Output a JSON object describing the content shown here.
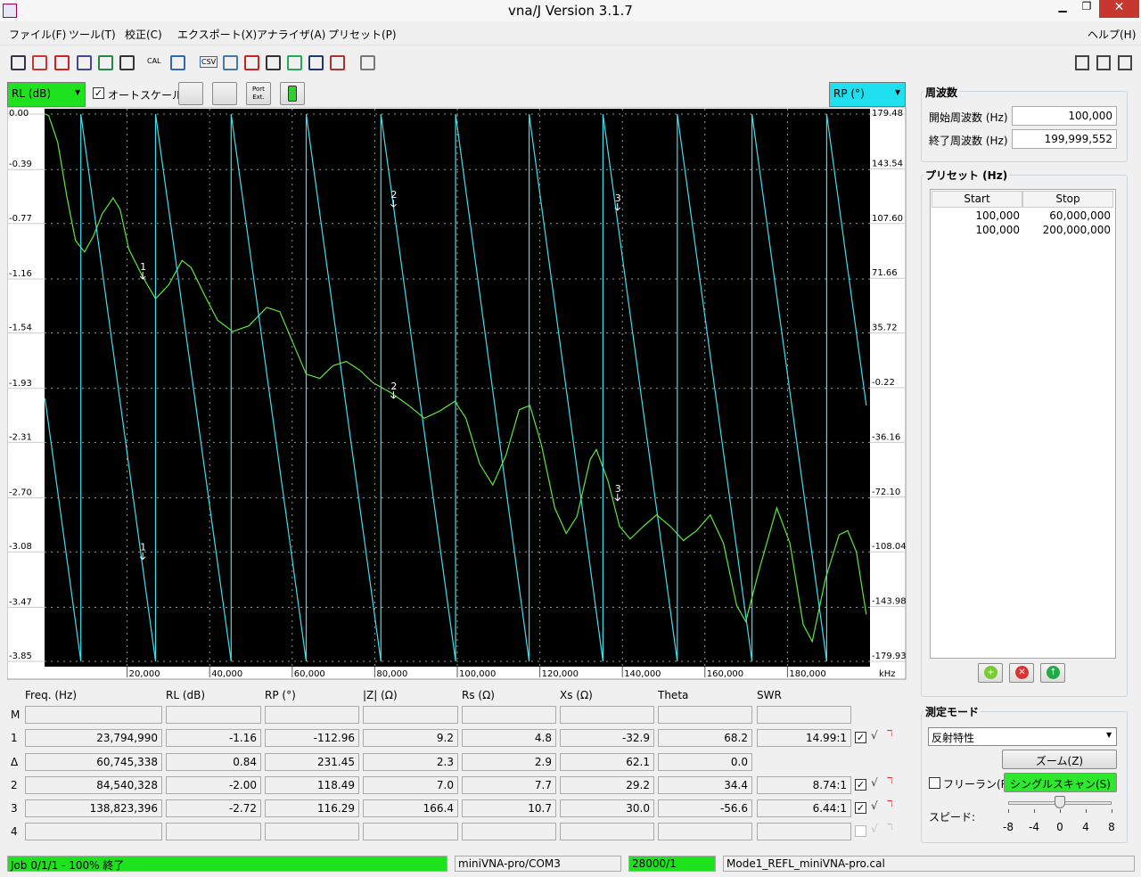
{
  "window": {
    "title": "vna/J Version 3.1.7"
  },
  "menu": {
    "items": [
      "ファイル(F)",
      "ツール(T)",
      "校正(C)",
      "エクスポート(X)",
      "アナライザ(A)",
      "プリセット(P)"
    ],
    "help": "ヘルプ(H)"
  },
  "toolbar": {
    "cal": "CAL",
    "csv": "CSV"
  },
  "chart_controls": {
    "left_trace": "RL (dB)",
    "autoscale": "オートスケール",
    "autoscale_checked": true,
    "port_button": "Port Ext.",
    "right_trace": "RP (°)"
  },
  "chart": {
    "type": "line",
    "x_unit": "kHz",
    "xlim": [
      0,
      200000
    ],
    "xticks": [
      {
        "value": 20000,
        "label": "20,000"
      },
      {
        "value": 40000,
        "label": "40,000"
      },
      {
        "value": 60000,
        "label": "60,000"
      },
      {
        "value": 80000,
        "label": "80,000"
      },
      {
        "value": 100000,
        "label": "100,000"
      },
      {
        "value": 120000,
        "label": "120,000"
      },
      {
        "value": 140000,
        "label": "140,000"
      },
      {
        "value": 160000,
        "label": "160,000"
      },
      {
        "value": 180000,
        "label": "180,000"
      }
    ],
    "ylim": [
      -3.85,
      0
    ],
    "yticks": [
      {
        "value": 0,
        "label": "0.00"
      },
      -0.39,
      -0.77,
      -1.16,
      -1.54,
      -1.93,
      -2.31,
      {
        "value": -2.7,
        "label": "-2.70"
      },
      -3.08,
      -3.47,
      -3.85
    ],
    "y2lim": [
      -179.93,
      179.48
    ],
    "y2ticks": [
      179.48,
      143.54,
      {
        "value": 107.6,
        "label": "107.60"
      },
      71.66,
      35.72,
      -0.22,
      -36.16,
      {
        "value": -72.1,
        "label": "-72.10"
      },
      -108.04,
      -143.98,
      -179.93
    ],
    "grid": true,
    "series": [
      {
        "color": "#5ee83c",
        "x": [
          100,
          1000,
          3200,
          5400,
          7500,
          9700,
          11800,
          14000,
          16600,
          18300,
          20400,
          23700,
          26900,
          30100,
          33300,
          35500,
          38700,
          41900,
          45600,
          49500,
          53800,
          57000,
          60200,
          63400,
          66700,
          69900,
          73100,
          76300,
          79600,
          83900,
          88200,
          92000,
          95700,
          99400,
          102100,
          105400,
          108600,
          111800,
          115000,
          117600,
          120400,
          123600,
          126400,
          129000,
          132200,
          133700,
          136500,
          139300,
          141900,
          145100,
          148300,
          151600,
          154800,
          158000,
          161300,
          164500,
          167700,
          169900,
          173100,
          177400,
          180600,
          183800,
          186000,
          189200,
          192500,
          194600,
          196700,
          199100
        ],
        "values": [
          0,
          -0.01,
          -0.2,
          -0.58,
          -0.89,
          -0.97,
          -0.86,
          -0.7,
          -0.59,
          -0.67,
          -0.95,
          -1.14,
          -1.3,
          -1.2,
          -1.03,
          -1.08,
          -1.27,
          -1.45,
          -1.53,
          -1.49,
          -1.36,
          -1.39,
          -1.61,
          -1.83,
          -1.86,
          -1.77,
          -1.74,
          -1.8,
          -1.89,
          -1.96,
          -2.05,
          -2.14,
          -2.09,
          -2.02,
          -2.14,
          -2.46,
          -2.61,
          -2.4,
          -2.08,
          -2.05,
          -2.33,
          -2.77,
          -2.95,
          -2.83,
          -2.43,
          -2.36,
          -2.58,
          -2.9,
          -2.99,
          -2.9,
          -2.82,
          -2.9,
          -3.0,
          -2.93,
          -2.82,
          -3.02,
          -3.46,
          -3.57,
          -3.21,
          -2.77,
          -3.02,
          -3.59,
          -3.71,
          -3.27,
          -2.96,
          -2.93,
          -3.08,
          -3.52
        ]
      },
      {
        "axis": "y2",
        "color": "#3fdfee",
        "x": [
          100,
          8800,
          8800,
          26900,
          26900,
          45200,
          45200,
          63400,
          63400,
          81500,
          81500,
          99600,
          99600,
          117400,
          117400,
          135300,
          135300,
          153300,
          153300,
          171400,
          171400,
          189500,
          189500,
          199100
        ],
        "values": [
          -7.3,
          -179.93,
          179.48,
          -179.93,
          179.48,
          -179.93,
          179.48,
          -179.93,
          179.48,
          -179.93,
          179.48,
          -179.93,
          179.48,
          -179.93,
          179.48,
          -179.93,
          179.48,
          -179.93,
          179.48,
          -179.93,
          179.48,
          -179.93,
          179.48,
          -11.9
        ]
      }
    ],
    "markers": [
      {
        "label": "1",
        "x": 23794.99,
        "rl": -1.16,
        "rp": -112.96
      },
      {
        "label": "2",
        "x": 84540.328,
        "rl": -2.0,
        "rp": 118.49
      },
      {
        "label": "3",
        "x": 138823.396,
        "rl": -2.72,
        "rp": 116.29
      }
    ]
  },
  "frequency": {
    "title": "周波数",
    "start_label": "開始周波数 (Hz)",
    "start": "100,000",
    "stop_label": "終了周波数 (Hz)",
    "stop": "199,999,552"
  },
  "presets": {
    "title": "プリセット (Hz)",
    "columns": [
      "Start",
      "Stop"
    ],
    "rows": [
      [
        "100,000",
        "60,000,000"
      ],
      [
        "100,000",
        "200,000,000"
      ]
    ]
  },
  "marker_table": {
    "columns": [
      "Freq. (Hz)",
      "RL (dB)",
      "RP (°)",
      "|Z| (Ω)",
      "Rs (Ω)",
      "Xs (Ω)",
      "Theta",
      "SWR"
    ],
    "rows": [
      {
        "label": "M"
      },
      {
        "label": "1",
        "cells": [
          "23,794,990",
          "-1.16",
          "-112.96",
          "9.2",
          "4.8",
          "-32.9",
          "68.2",
          "14.99:1"
        ],
        "checked": true
      },
      {
        "label": "Δ",
        "cells": [
          "60,745,338",
          "0.84",
          "231.45",
          "2.3",
          "2.9",
          "62.1",
          "0.0"
        ]
      },
      {
        "label": "2",
        "cells": [
          "84,540,328",
          "-2.00",
          "118.49",
          "7.0",
          "7.7",
          "29.2",
          "34.4",
          "8.74:1"
        ],
        "checked": true
      },
      {
        "label": "3",
        "cells": [
          "138,823,396",
          "-2.72",
          "116.29",
          "166.4",
          "10.7",
          "30.0",
          "-56.6",
          "6.44:1"
        ],
        "checked": true
      },
      {
        "label": "4",
        "checked": false
      }
    ]
  },
  "mode": {
    "title": "測定モード",
    "select": "反射特性",
    "zoom": "ズーム(Z)",
    "freerun": "フリーラン(R)",
    "freerun_checked": false,
    "single_scan": "シングルスキャン(S)",
    "speed_label": "スピード:",
    "speed_ticks": [
      -8,
      -4,
      0,
      4,
      8
    ],
    "speed": 0
  },
  "status": [
    "Job 0/1/1 - 100% 終了",
    "miniVNA-pro/COM3",
    "28000/1",
    "Mode1_REFL_miniVNA-pro.cal"
  ]
}
